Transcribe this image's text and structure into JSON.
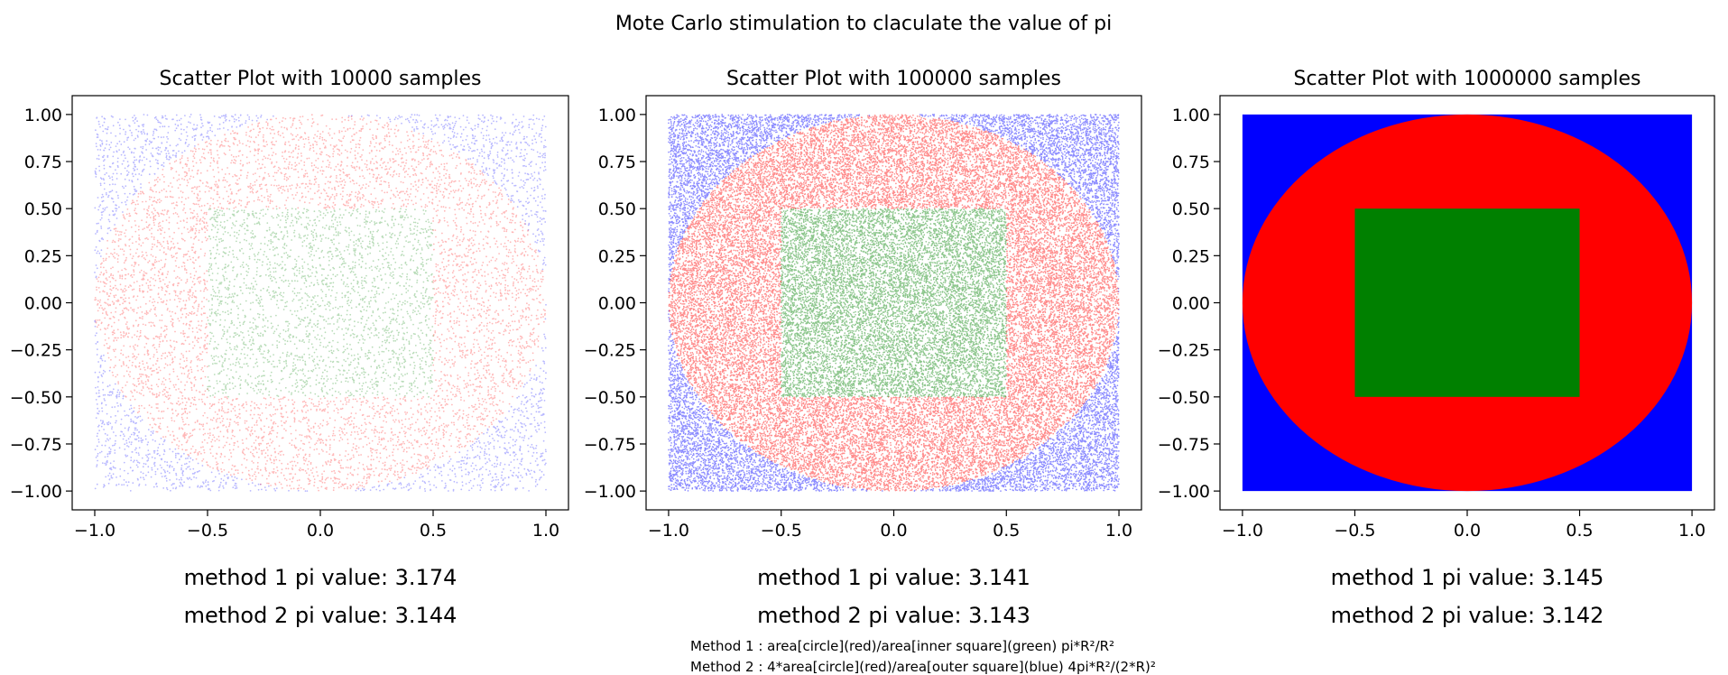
{
  "title": "Mote Carlo stimulation to claculate the value of pi",
  "colors": {
    "outer": "#0000ff",
    "circle": "#ff0000",
    "inner": "#008000"
  },
  "notes": [
    "Method 1 : area[circle](red)/area[inner square](green) pi*R²/R²",
    "Method 2 : 4*area[circle](red)/area[outer square](blue) 4pi*R²/(2*R)²"
  ],
  "chart_data": [
    {
      "type": "scatter",
      "title": "Scatter Plot with 10000 samples",
      "samples": 10000,
      "xlim": [
        -1.1,
        1.1
      ],
      "ylim": [
        -1.1,
        1.1
      ],
      "xticks": [
        "−1.0",
        "−0.5",
        "0.0",
        "0.5",
        "1.0"
      ],
      "yticks": [
        "1.00",
        "0.75",
        "0.50",
        "0.25",
        "0.00",
        "−0.25",
        "−0.50",
        "−0.75",
        "−1.00"
      ],
      "regions": {
        "outer_square_halfwidth": 1.0,
        "circle_radius": 1.0,
        "inner_square_halfwidth": 0.5
      },
      "results": [
        "method 1 pi value: 3.174",
        "method 2 pi value: 3.144"
      ]
    },
    {
      "type": "scatter",
      "title": "Scatter Plot with 100000 samples",
      "samples": 100000,
      "xlim": [
        -1.1,
        1.1
      ],
      "ylim": [
        -1.1,
        1.1
      ],
      "xticks": [
        "−1.0",
        "−0.5",
        "0.0",
        "0.5",
        "1.0"
      ],
      "yticks": [
        "1.00",
        "0.75",
        "0.50",
        "0.25",
        "0.00",
        "−0.25",
        "−0.50",
        "−0.75",
        "−1.00"
      ],
      "regions": {
        "outer_square_halfwidth": 1.0,
        "circle_radius": 1.0,
        "inner_square_halfwidth": 0.5
      },
      "results": [
        "method 1 pi value: 3.141",
        "method 2 pi value: 3.143"
      ]
    },
    {
      "type": "scatter",
      "title": "Scatter Plot with 1000000 samples",
      "samples": 1000000,
      "xlim": [
        -1.1,
        1.1
      ],
      "ylim": [
        -1.1,
        1.1
      ],
      "xticks": [
        "−1.0",
        "−0.5",
        "0.0",
        "0.5",
        "1.0"
      ],
      "yticks": [
        "1.00",
        "0.75",
        "0.50",
        "0.25",
        "0.00",
        "−0.25",
        "−0.50",
        "−0.75",
        "−1.00"
      ],
      "regions": {
        "outer_square_halfwidth": 1.0,
        "circle_radius": 1.0,
        "inner_square_halfwidth": 0.5
      },
      "results": [
        "method 1 pi value: 3.145",
        "method 2 pi value: 3.142"
      ]
    }
  ]
}
